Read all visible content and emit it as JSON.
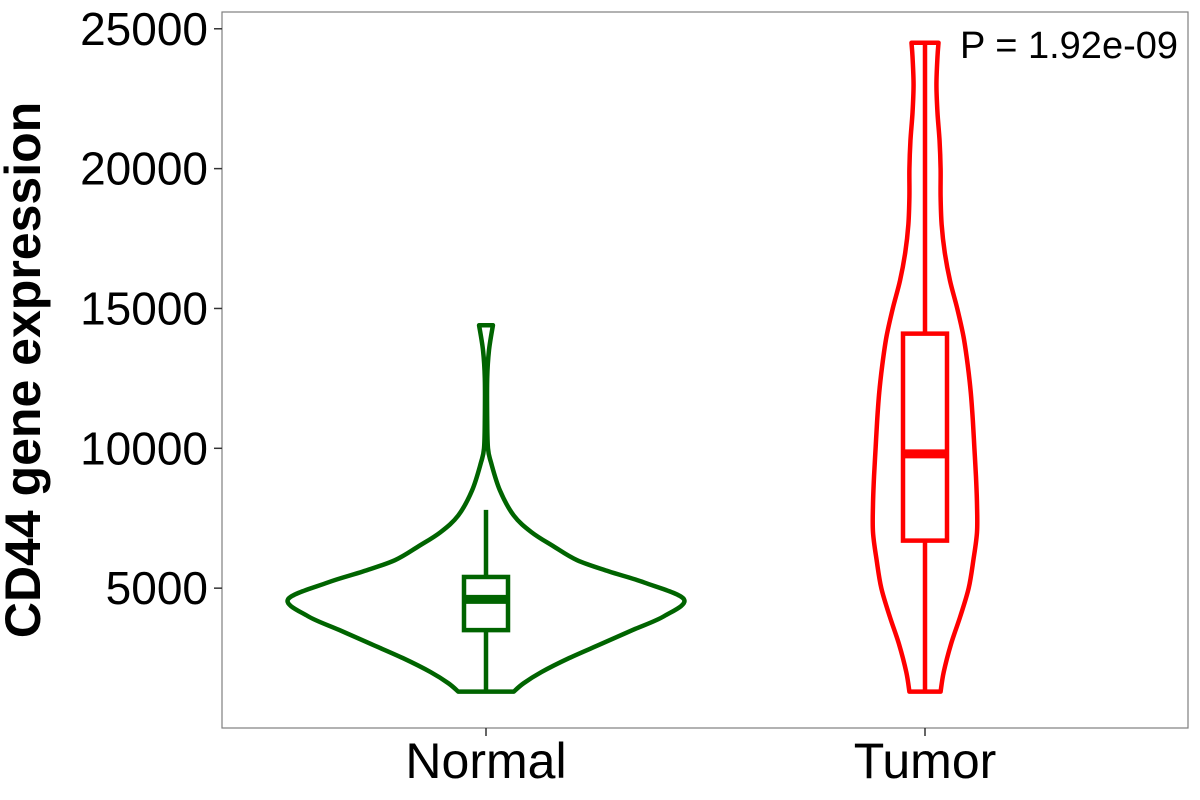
{
  "chart_data": {
    "type": "violin",
    "title": "",
    "xlabel": "",
    "ylabel": "CD44 gene expression",
    "ylim": [
      0,
      25600
    ],
    "y_ticks": [
      5000,
      10000,
      15000,
      20000,
      25000
    ],
    "y_tick_labels": [
      "5000",
      "10000",
      "15000",
      "20000",
      "25000"
    ],
    "categories": [
      "Normal",
      "Tumor"
    ],
    "grid": false,
    "legend": "none",
    "annotation": "P = 1.92e-09",
    "series": [
      {
        "category": "Normal",
        "color": "#006400",
        "min": 1300,
        "q1": 3500,
        "median": 4600,
        "q3": 5400,
        "whisker_high": 7800,
        "max": 14400,
        "density": [
          [
            1300,
            0.14
          ],
          [
            1600,
            0.19
          ],
          [
            2000,
            0.28
          ],
          [
            2500,
            0.42
          ],
          [
            3000,
            0.58
          ],
          [
            3500,
            0.74
          ],
          [
            4000,
            0.9
          ],
          [
            4600,
            1.0
          ],
          [
            5200,
            0.8
          ],
          [
            5600,
            0.62
          ],
          [
            6000,
            0.46
          ],
          [
            6500,
            0.34
          ],
          [
            7000,
            0.23
          ],
          [
            7600,
            0.14
          ],
          [
            8500,
            0.07
          ],
          [
            9500,
            0.025
          ],
          [
            10000,
            0.01
          ],
          [
            11000,
            0.006
          ],
          [
            12500,
            0.006
          ],
          [
            13500,
            0.015
          ],
          [
            14400,
            0.035
          ]
        ]
      },
      {
        "category": "Tumor",
        "color": "#ff0000",
        "min": 1300,
        "q1": 6700,
        "median": 9800,
        "q3": 14100,
        "whisker_high": 24500,
        "max": 24500,
        "density": [
          [
            1300,
            0.3
          ],
          [
            2000,
            0.36
          ],
          [
            3000,
            0.5
          ],
          [
            4000,
            0.68
          ],
          [
            5000,
            0.84
          ],
          [
            6000,
            0.93
          ],
          [
            7000,
            1.0
          ],
          [
            8000,
            1.0
          ],
          [
            9000,
            0.98
          ],
          [
            10000,
            0.95
          ],
          [
            11000,
            0.92
          ],
          [
            12000,
            0.88
          ],
          [
            13000,
            0.82
          ],
          [
            14000,
            0.74
          ],
          [
            15000,
            0.62
          ],
          [
            16000,
            0.48
          ],
          [
            17000,
            0.38
          ],
          [
            18000,
            0.32
          ],
          [
            19000,
            0.3
          ],
          [
            20000,
            0.3
          ],
          [
            21000,
            0.28
          ],
          [
            22000,
            0.24
          ],
          [
            23000,
            0.22
          ],
          [
            24000,
            0.24
          ],
          [
            24500,
            0.26
          ]
        ]
      }
    ]
  }
}
